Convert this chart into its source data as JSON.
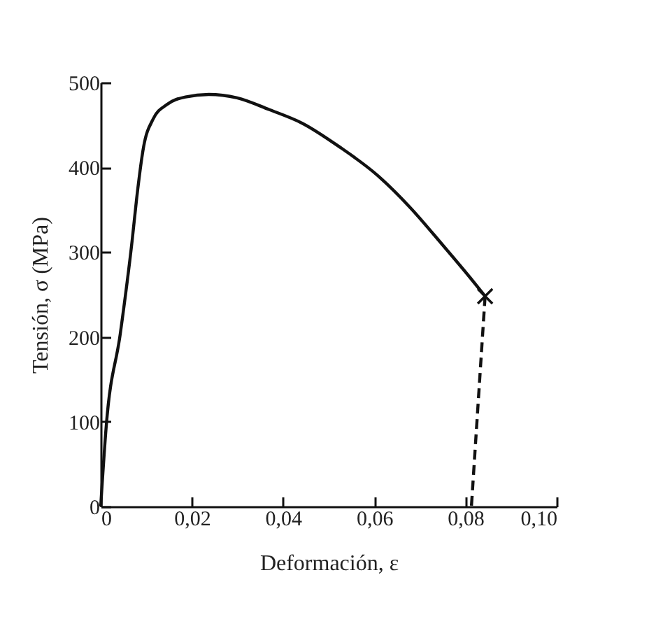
{
  "chart_data": {
    "type": "line",
    "xlabel": "Deformación, ε",
    "ylabel": "Tensión, σ (MPa)",
    "xlim": [
      0,
      0.1
    ],
    "ylim": [
      0,
      500
    ],
    "xticks": [
      0,
      {
        "value": 0.02,
        "label": "0,02"
      },
      {
        "value": 0.04,
        "label": "0,04"
      },
      {
        "value": 0.06,
        "label": "0,06"
      },
      {
        "value": 0.08,
        "label": "0,08"
      },
      {
        "value": 0.1,
        "label": "0,10"
      }
    ],
    "yticks": [
      0,
      100,
      200,
      300,
      400,
      500
    ],
    "grid": false,
    "series": [
      {
        "color": "#111111",
        "line_style": "solid",
        "x": [
          0,
          0.0012,
          0.0043,
          0.0069,
          0.0079,
          0.0094,
          0.0115,
          0.0145,
          0.0186,
          0.0237,
          0.0299,
          0.037,
          0.0442,
          0.0524,
          0.0606,
          0.0678,
          0.0749,
          0.081,
          0.0843
        ],
        "values": [
          0,
          94,
          204,
          314,
          364,
          424,
          457,
          474,
          483,
          486,
          482,
          468,
          452,
          424,
          391,
          353,
          309,
          270,
          248
        ]
      },
      {
        "type": "line",
        "color": "#111111",
        "line_style": "dashed",
        "x": [
          0.0843,
          0.0813
        ],
        "values": [
          248,
          0
        ]
      },
      {
        "type": "scatter",
        "color": "#111111",
        "marker": "cross",
        "x": [
          0.0843
        ],
        "values": [
          248
        ]
      }
    ]
  }
}
